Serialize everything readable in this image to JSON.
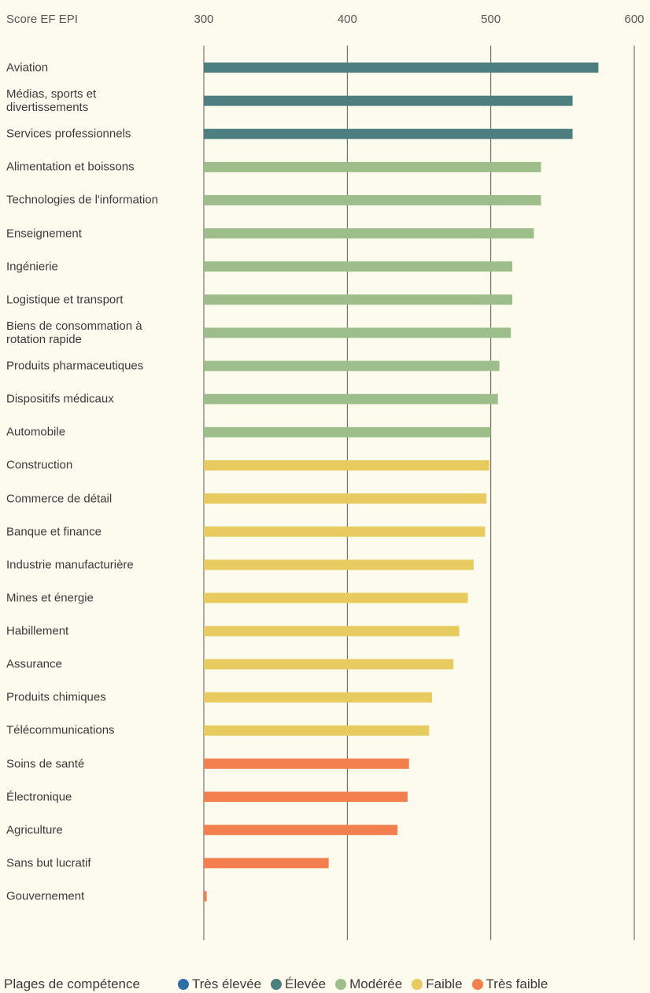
{
  "chart_data": {
    "type": "bar",
    "orientation": "horizontal",
    "x_label": "Score EF EPI",
    "legend_title": "Plages de compétence",
    "categories": [
      "Aviation",
      "Médias, sports et divertissements",
      "Services professionnels",
      "Alimentation et boissons",
      "Technologies de l'information",
      "Enseignement",
      "Ingénierie",
      "Logistique et transport",
      "Biens de consommation à rotation rapide",
      "Produits pharmaceutiques",
      "Dispositifs médicaux",
      "Automobile",
      "Construction",
      "Commerce de détail",
      "Banque et finance",
      "Industrie manufacturière",
      "Mines et énergie",
      "Habillement",
      "Assurance",
      "Produits chimiques",
      "Télécommunications",
      "Soins de santé",
      "Électronique",
      "Agriculture",
      "Sans but lucratif",
      "Gouvernement"
    ],
    "series": [
      {
        "name": "Très élevée",
        "color": "#2f6fa7",
        "values": [
          null,
          null,
          null,
          null,
          null,
          null,
          null,
          null,
          null,
          null,
          null,
          null,
          null,
          null,
          null,
          null,
          null,
          null,
          null,
          null,
          null,
          null,
          null,
          null,
          null,
          null
        ]
      },
      {
        "name": "Élevée",
        "color": "#4d7f80",
        "values": [
          575,
          557,
          557,
          null,
          null,
          null,
          null,
          null,
          null,
          null,
          null,
          null,
          null,
          null,
          null,
          null,
          null,
          null,
          null,
          null,
          null,
          null,
          null,
          null,
          null,
          null
        ]
      },
      {
        "name": "Modérée",
        "color": "#9dbe8a",
        "values": [
          null,
          null,
          null,
          535,
          535,
          530,
          515,
          515,
          514,
          506,
          505,
          500,
          null,
          null,
          null,
          null,
          null,
          null,
          null,
          null,
          null,
          null,
          null,
          null,
          null,
          null
        ]
      },
      {
        "name": "Faible",
        "color": "#e8cb5e",
        "values": [
          null,
          null,
          null,
          null,
          null,
          null,
          null,
          null,
          null,
          null,
          null,
          null,
          499,
          497,
          496,
          488,
          484,
          478,
          474,
          459,
          457,
          null,
          null,
          null,
          null,
          null
        ]
      },
      {
        "name": "Très faible",
        "color": "#f47f4e",
        "values": [
          null,
          null,
          null,
          null,
          null,
          null,
          null,
          null,
          null,
          null,
          null,
          null,
          null,
          null,
          null,
          null,
          null,
          null,
          null,
          null,
          null,
          443,
          442,
          435,
          387,
          302
        ]
      }
    ],
    "xlim": [
      300,
      600
    ],
    "xticks": [
      300,
      400,
      500,
      600
    ],
    "grid": true
  }
}
